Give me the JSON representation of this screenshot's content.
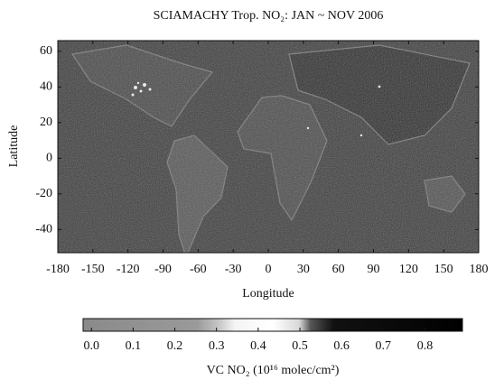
{
  "chart_data": {
    "type": "map",
    "title": "SCIAMACHY Trop. NO₂: JAN ~ NOV 2006",
    "xlabel": "Longitude",
    "ylabel": "Latitude",
    "xlim": [
      -180,
      180
    ],
    "ylim": [
      -53,
      66
    ],
    "xticks": [
      -180,
      -150,
      -120,
      -90,
      -60,
      -30,
      0,
      30,
      60,
      90,
      120,
      150,
      180
    ],
    "yticks": [
      -40,
      -20,
      0,
      20,
      40,
      60
    ],
    "colorbar": {
      "label": "VC NO₂ (10¹⁶ molec/cm²)",
      "lim": [
        -0.02,
        0.89
      ],
      "ticks": [
        {
          "value": 0,
          "label": "0.0"
        },
        0.1,
        0.2,
        0.3,
        0.4,
        0.5,
        0.6,
        0.7,
        0.8
      ]
    }
  }
}
